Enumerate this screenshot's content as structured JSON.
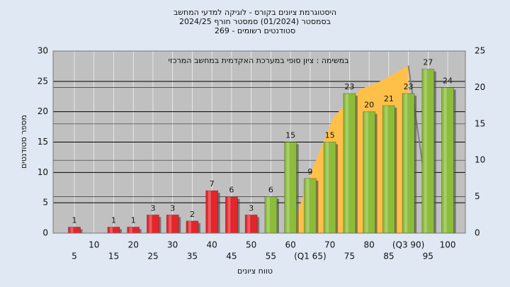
{
  "chart_data": {
    "type": "bar",
    "title": "היסטוגרמת ציונים בקורס - לוגיקה למדעי המחשב",
    "subtitle": "בסמסטר  (01/2024)  סמסטר חורף 2024/25",
    "subtitle2": "סטודנטים רשומים - 269",
    "annotation": "במשימה : ציון סופי במערכת האקדמית במחשב המרכזי",
    "y_label": "מספר סטודנטים",
    "x_label": "טווח ציונים",
    "categories": [
      "5",
      "10",
      "15",
      "20",
      "25",
      "30",
      "35",
      "40",
      "45",
      "50",
      "55",
      "60",
      "(Q1 65)",
      "70",
      "75",
      "80",
      "85",
      "(Q3 90)",
      "95",
      "100"
    ],
    "values": [
      1,
      0,
      1,
      1,
      3,
      3,
      2,
      7,
      6,
      3,
      6,
      15,
      9,
      15,
      23,
      20,
      21,
      23,
      27,
      24
    ],
    "colors": [
      "#e3262b",
      "#e3262b",
      "#e3262b",
      "#e3262b",
      "#e3262b",
      "#e3262b",
      "#e3262b",
      "#e3262b",
      "#e3262b",
      "#e3262b",
      "#8cbd3a",
      "#8cbd3a",
      "#8cbd3a",
      "#8cbd3a",
      "#8cbd3a",
      "#8cbd3a",
      "#8cbd3a",
      "#8cbd3a",
      "#8cbd3a",
      "#8cbd3a"
    ],
    "ylim": [
      0,
      30
    ],
    "yticks": [
      0,
      5,
      10,
      15,
      20,
      25,
      30
    ],
    "y2lim": [
      0,
      25
    ],
    "y2ticks": [
      0,
      5,
      10,
      15,
      20,
      25
    ],
    "grid": true,
    "overlays": [
      {
        "type": "area",
        "axis": "y2",
        "color": "#ffc04a",
        "x": [
          60,
          65.5,
          71,
          78,
          83.5,
          90
        ],
        "values": [
          0,
          8.7,
          16,
          19.8,
          21,
          23
        ]
      },
      {
        "type": "line",
        "axis": "y2",
        "color": "#808080",
        "x": [
          90,
          93.8
        ],
        "values": [
          23,
          8.7
        ]
      }
    ]
  }
}
